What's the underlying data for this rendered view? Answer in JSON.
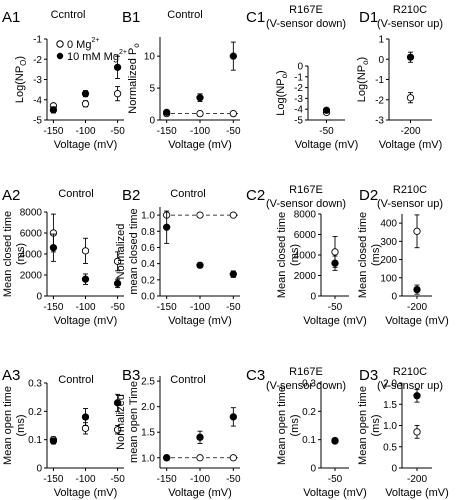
{
  "figure": {
    "background": "#ffffff",
    "open_color": "#ffffff",
    "filled_color": "#000000"
  },
  "legend": {
    "open_label": "0 Mg",
    "open_sup": "2+",
    "filled_label": "10 mM Mg",
    "filled_sup": "2+"
  },
  "chart_data": [
    {
      "id": "A1",
      "type": "scatter",
      "title": "Ccntrol",
      "xlabel": "Voltage (mV)",
      "ylabel": "Log(NP",
      "ylabel_sub": "O",
      "ylabel_end": ")",
      "xlim": [
        -160,
        -40
      ],
      "xticks": [
        -150,
        -100,
        -50
      ],
      "xticklabels": [
        "-150",
        "-100",
        "-50"
      ],
      "ylim": [
        -5,
        -1
      ],
      "yticks": [
        -5,
        -4,
        -3,
        -2,
        -1
      ],
      "yticklabels": [
        "-5",
        "-4",
        "-3",
        "-2",
        "-1"
      ],
      "dashed_ref": null,
      "series": [
        {
          "name": "0 Mg2+",
          "fill": "open",
          "x": [
            -150,
            -100,
            -50
          ],
          "y": [
            -4.3,
            -4.2,
            -3.7
          ],
          "err": [
            0.1,
            0.15,
            0.35
          ]
        },
        {
          "name": "10 mM Mg2+",
          "fill": "filled",
          "x": [
            -150,
            -100,
            -50
          ],
          "y": [
            -4.5,
            -3.7,
            -2.4
          ],
          "err": [
            0.15,
            0.15,
            0.55
          ]
        }
      ]
    },
    {
      "id": "B1",
      "type": "scatter",
      "title": "Control",
      "xlabel": "Voltage (mV)",
      "ylabel": "Normalized P",
      "ylabel_sub": "o",
      "ylabel_end": "",
      "xlim": [
        -160,
        -40
      ],
      "xticks": [
        -150,
        -100,
        -50
      ],
      "xticklabels": [
        "-150",
        "-100",
        "-50"
      ],
      "ylim": [
        0,
        13
      ],
      "yticks": [
        0,
        5,
        10
      ],
      "yticklabels": [
        "0",
        "5",
        "10"
      ],
      "dashed_ref": 1,
      "series": [
        {
          "name": "0 Mg2+",
          "fill": "open",
          "x": [
            -150,
            -100,
            -50
          ],
          "y": [
            1,
            1,
            1
          ],
          "err": [
            0,
            0,
            0
          ]
        },
        {
          "name": "10 mM Mg2+",
          "fill": "filled",
          "x": [
            -150,
            -100,
            -50
          ],
          "y": [
            1.2,
            3.5,
            10
          ],
          "err": [
            0.3,
            0.6,
            2.2
          ]
        }
      ]
    },
    {
      "id": "C1",
      "type": "scatter",
      "title": "R167E",
      "subtitle": "(V-sensor down)",
      "xlabel": "Voltage (mV)",
      "ylabel": "Log(NP",
      "ylabel_sub": "o",
      "ylabel_end": ")",
      "xlim": [
        -65,
        -35
      ],
      "xticks": [
        -50
      ],
      "xticklabels": [
        "-50"
      ],
      "ylim": [
        -5,
        0
      ],
      "yticks": [
        -5,
        -4,
        -3,
        -2,
        -1,
        0
      ],
      "yticklabels": [
        "-5",
        "-4",
        "-3",
        "-2",
        "-1",
        "0"
      ],
      "dashed_ref": null,
      "series": [
        {
          "name": "0 Mg2+",
          "fill": "open",
          "x": [
            -50
          ],
          "y": [
            -4.3
          ],
          "err": [
            0.15
          ]
        },
        {
          "name": "10 mM Mg2+",
          "fill": "filled",
          "x": [
            -50
          ],
          "y": [
            -4.1
          ],
          "err": [
            0.1
          ]
        }
      ]
    },
    {
      "id": "D1",
      "type": "scatter",
      "title": "R210C",
      "subtitle": "(V-sensor up)",
      "xlabel": "Voltage (mV)",
      "ylabel": "Log(NP",
      "ylabel_sub": "o",
      "ylabel_end": ")",
      "xlim": [
        -215,
        -185
      ],
      "xticks": [
        -200
      ],
      "xticklabels": [
        "-200"
      ],
      "ylim": [
        -3,
        1
      ],
      "yticks": [
        -3,
        -2,
        -1,
        0,
        1
      ],
      "yticklabels": [
        "-3",
        "-2",
        "-1",
        "0",
        "1"
      ],
      "dashed_ref": null,
      "series": [
        {
          "name": "0 Mg2+",
          "fill": "open",
          "x": [
            -200
          ],
          "y": [
            -1.9
          ],
          "err": [
            0.25
          ]
        },
        {
          "name": "10 mM Mg2+",
          "fill": "filled",
          "x": [
            -200
          ],
          "y": [
            0.1
          ],
          "err": [
            0.25
          ]
        }
      ]
    },
    {
      "id": "A2",
      "type": "scatter",
      "title": "Control",
      "xlabel": "Voltage (mV)",
      "ylabel": "Mean closed time",
      "ylabel2": "(ms)",
      "xlim": [
        -160,
        -40
      ],
      "xticks": [
        -150,
        -100,
        -50
      ],
      "xticklabels": [
        "-150",
        "-100",
        "-50"
      ],
      "ylim": [
        0,
        8000
      ],
      "yticks": [
        0,
        2000,
        4000,
        6000,
        8000
      ],
      "yticklabels": [
        "0",
        "2000",
        "4000",
        "6000",
        "8000"
      ],
      "dashed_ref": null,
      "series": [
        {
          "name": "0 Mg2+",
          "fill": "open",
          "x": [
            -150,
            -100,
            -50
          ],
          "y": [
            6000,
            4300,
            3300
          ],
          "err": [
            1800,
            1200,
            900
          ]
        },
        {
          "name": "10 mM Mg2+",
          "fill": "filled",
          "x": [
            -150,
            -100,
            -50
          ],
          "y": [
            4600,
            1600,
            1200
          ],
          "err": [
            1300,
            500,
            400
          ]
        }
      ]
    },
    {
      "id": "B2",
      "type": "scatter",
      "title": "Control",
      "xlabel": "Voltage (mV)",
      "ylabel": "Normalized",
      "ylabel2": "mean closed time",
      "xlim": [
        -160,
        -40
      ],
      "xticks": [
        -150,
        -100,
        -50
      ],
      "xticklabels": [
        "-150",
        "-100",
        "-50"
      ],
      "ylim": [
        0,
        1.1
      ],
      "yticks": [
        0,
        0.2,
        0.4,
        0.6,
        0.8,
        1.0
      ],
      "yticklabels": [
        "0.0",
        "0.2",
        "0.4",
        "0.6",
        "0.8",
        "1.0"
      ],
      "dashed_ref": 1.0,
      "series": [
        {
          "name": "0 Mg2+",
          "fill": "open",
          "x": [
            -150,
            -100,
            -50
          ],
          "y": [
            1.0,
            1.0,
            1.0
          ],
          "err": [
            0,
            0,
            0
          ]
        },
        {
          "name": "10 mM Mg2+",
          "fill": "filled",
          "x": [
            -150,
            -100,
            -50
          ],
          "y": [
            0.85,
            0.38,
            0.27
          ],
          "err": [
            0.2,
            0.03,
            0.04
          ]
        }
      ]
    },
    {
      "id": "C2",
      "type": "scatter",
      "title": "R167E",
      "subtitle": "(V-sensor down)",
      "xlabel": "Voltage (mV)",
      "ylabel": "Mean closed time",
      "ylabel2": "(ms)",
      "xlim": [
        -65,
        -35
      ],
      "xticks": [
        -50
      ],
      "xticklabels": [
        "-50"
      ],
      "ylim": [
        0,
        8000
      ],
      "yticks": [
        0,
        2000,
        4000,
        6000,
        8000
      ],
      "yticklabels": [
        "0",
        "2000",
        "4000",
        "6000",
        "8000"
      ],
      "dashed_ref": null,
      "series": [
        {
          "name": "0 Mg2+",
          "fill": "open",
          "x": [
            -50
          ],
          "y": [
            4300
          ],
          "err": [
            1500
          ]
        },
        {
          "name": "10 mM Mg2+",
          "fill": "filled",
          "x": [
            -50
          ],
          "y": [
            3200
          ],
          "err": [
            700
          ]
        }
      ]
    },
    {
      "id": "D2",
      "type": "scatter",
      "title": "R210C",
      "subtitle": "(V-sensor up)",
      "xlabel": "Voltage (mV)",
      "ylabel": "Mean closed time",
      "ylabel2": "(ms)",
      "xlim": [
        -215,
        -185
      ],
      "xticks": [
        -200
      ],
      "xticklabels": [
        "-200"
      ],
      "ylim": [
        0,
        450
      ],
      "yticks": [
        0,
        100,
        200,
        300,
        400
      ],
      "yticklabels": [
        "0",
        "100",
        "200",
        "300",
        "400"
      ],
      "dashed_ref": null,
      "series": [
        {
          "name": "0 Mg2+",
          "fill": "open",
          "x": [
            -200
          ],
          "y": [
            355
          ],
          "err": [
            90
          ]
        },
        {
          "name": "10 mM Mg2+",
          "fill": "filled",
          "x": [
            -200
          ],
          "y": [
            35
          ],
          "err": [
            25
          ]
        }
      ]
    },
    {
      "id": "A3",
      "type": "scatter",
      "title": "Control",
      "xlabel": "Voltage (mV)",
      "ylabel": "Mean open time",
      "ylabel2": "(ms)",
      "xlim": [
        -160,
        -40
      ],
      "xticks": [
        -150,
        -100,
        -50
      ],
      "xticklabels": [
        "-150",
        "-100",
        "-50"
      ],
      "ylim": [
        0,
        0.3
      ],
      "yticks": [
        0,
        0.1,
        0.2,
        0.3
      ],
      "yticklabels": [
        "0",
        "0.1",
        "0.2",
        "0.3"
      ],
      "dashed_ref": null,
      "series": [
        {
          "name": "0 Mg2+",
          "fill": "open",
          "x": [
            -150,
            -100,
            -50
          ],
          "y": [
            0.1,
            0.14,
            0.135
          ],
          "err": [
            0.01,
            0.02,
            0.015
          ]
        },
        {
          "name": "10 mM Mg2+",
          "fill": "filled",
          "x": [
            -150,
            -100,
            -50
          ],
          "y": [
            0.095,
            0.18,
            0.23
          ],
          "err": [
            0.01,
            0.03,
            0.03
          ]
        }
      ]
    },
    {
      "id": "B3",
      "type": "scatter",
      "title": "Control",
      "xlabel": "Voltage (mV)",
      "ylabel": "Normalized",
      "ylabel2": "mean open Time",
      "xlim": [
        -160,
        -40
      ],
      "xticks": [
        -150,
        -100,
        -50
      ],
      "xticklabels": [
        "-150",
        "-100",
        "-50"
      ],
      "ylim": [
        0.8,
        2.6
      ],
      "yticks": [
        1.0,
        1.5,
        2.0,
        2.5
      ],
      "yticklabels": [
        "1.0",
        "1.5",
        "2.0",
        "2.5"
      ],
      "dashed_ref": 1.0,
      "series": [
        {
          "name": "0 Mg2+",
          "fill": "open",
          "x": [
            -150,
            -100,
            -50
          ],
          "y": [
            1.0,
            1.0,
            1.0
          ],
          "err": [
            0,
            0,
            0
          ]
        },
        {
          "name": "10 mM Mg2+",
          "fill": "filled",
          "x": [
            -150,
            -100,
            -50
          ],
          "y": [
            1.0,
            1.4,
            1.8
          ],
          "err": [
            0.05,
            0.12,
            0.18
          ]
        }
      ]
    },
    {
      "id": "C3",
      "type": "scatter",
      "title": "R167E",
      "subtitle": "(V-sensor down)",
      "xlabel": "Voltage (mV)",
      "ylabel": "Mean open time",
      "ylabel2": "(ms)",
      "xlim": [
        -65,
        -35
      ],
      "xticks": [
        -50
      ],
      "xticklabels": [
        "-50"
      ],
      "ylim": [
        0,
        0.3
      ],
      "yticks": [
        0,
        0.1,
        0.2,
        0.3
      ],
      "yticklabels": [
        "0",
        "0.1",
        "0.2",
        "0.3"
      ],
      "dashed_ref": null,
      "series": [
        {
          "name": "0 Mg2+",
          "fill": "open",
          "x": [
            -50
          ],
          "y": [
            0.095
          ],
          "err": [
            0.008
          ]
        },
        {
          "name": "10 mM Mg2+",
          "fill": "filled",
          "x": [
            -50
          ],
          "y": [
            0.097
          ],
          "err": [
            0.008
          ]
        }
      ]
    },
    {
      "id": "D3",
      "type": "scatter",
      "title": "R210C",
      "subtitle": "(V-sensor up)",
      "xlabel": "Voltage (mV)",
      "ylabel": "Mean open time",
      "ylabel2": "(ms)",
      "xlim": [
        -215,
        -185
      ],
      "xticks": [
        -200
      ],
      "xticklabels": [
        "-200"
      ],
      "ylim": [
        0,
        2.0
      ],
      "yticks": [
        0,
        0.5,
        1.0,
        1.5,
        2.0
      ],
      "yticklabels": [
        "0",
        "0.5",
        "1.0",
        "1.5",
        "2.0"
      ],
      "dashed_ref": null,
      "series": [
        {
          "name": "0 Mg2+",
          "fill": "open",
          "x": [
            -200
          ],
          "y": [
            0.85
          ],
          "err": [
            0.15
          ]
        },
        {
          "name": "10 mM Mg2+",
          "fill": "filled",
          "x": [
            -200
          ],
          "y": [
            1.7
          ],
          "err": [
            0.15
          ]
        }
      ]
    }
  ]
}
